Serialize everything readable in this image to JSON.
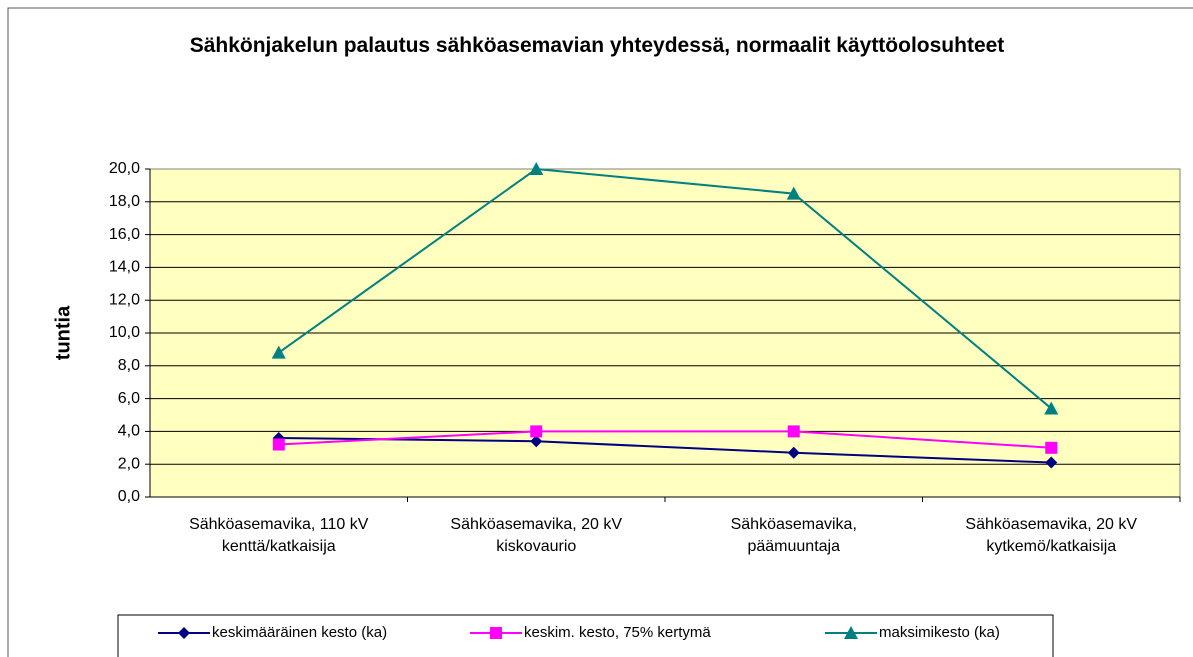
{
  "chart_data": {
    "type": "line",
    "title": "Sähkönjakelun palautus sähköasemavian yhteydessä, normaalit käyttöolosuhteet",
    "ylabel": "tuntia",
    "categories": [
      [
        "Sähköasemavika, 110 kV",
        "kenttä/katkaisija"
      ],
      [
        "Sähköasemavika, 20 kV",
        "kiskovaurio"
      ],
      [
        "Sähköasemavika,",
        "päämuuntaja"
      ],
      [
        "Sähköasemavika, 20 kV",
        "kytkemö/katkaisija"
      ]
    ],
    "series": [
      {
        "name": "keskimääräinen kesto (ka)",
        "color": "#000080",
        "marker": "diamond",
        "values": [
          3.6,
          3.4,
          2.7,
          2.1
        ]
      },
      {
        "name": "keskim. kesto, 75% kertymä",
        "color": "#ff00ff",
        "marker": "square",
        "values": [
          3.2,
          4.0,
          4.0,
          3.0
        ]
      },
      {
        "name": "maksimikesto (ka)",
        "color": "#008080",
        "marker": "triangle",
        "values": [
          8.8,
          20.0,
          18.5,
          5.4
        ]
      }
    ],
    "ylim": [
      0,
      20
    ],
    "yticks": [
      {
        "value": 0,
        "label": "0,0"
      },
      {
        "value": 2,
        "label": "2,0"
      },
      {
        "value": 4,
        "label": "4,0"
      },
      {
        "value": 6,
        "label": "6,0"
      },
      {
        "value": 8,
        "label": "8,0"
      },
      {
        "value": 10,
        "label": "10,0"
      },
      {
        "value": 12,
        "label": "12,0"
      },
      {
        "value": 14,
        "label": "14,0"
      },
      {
        "value": 16,
        "label": "16,0"
      },
      {
        "value": 18,
        "label": "18,0"
      },
      {
        "value": 20,
        "label": "20,0"
      }
    ],
    "grid": true,
    "legend": "bottom"
  }
}
